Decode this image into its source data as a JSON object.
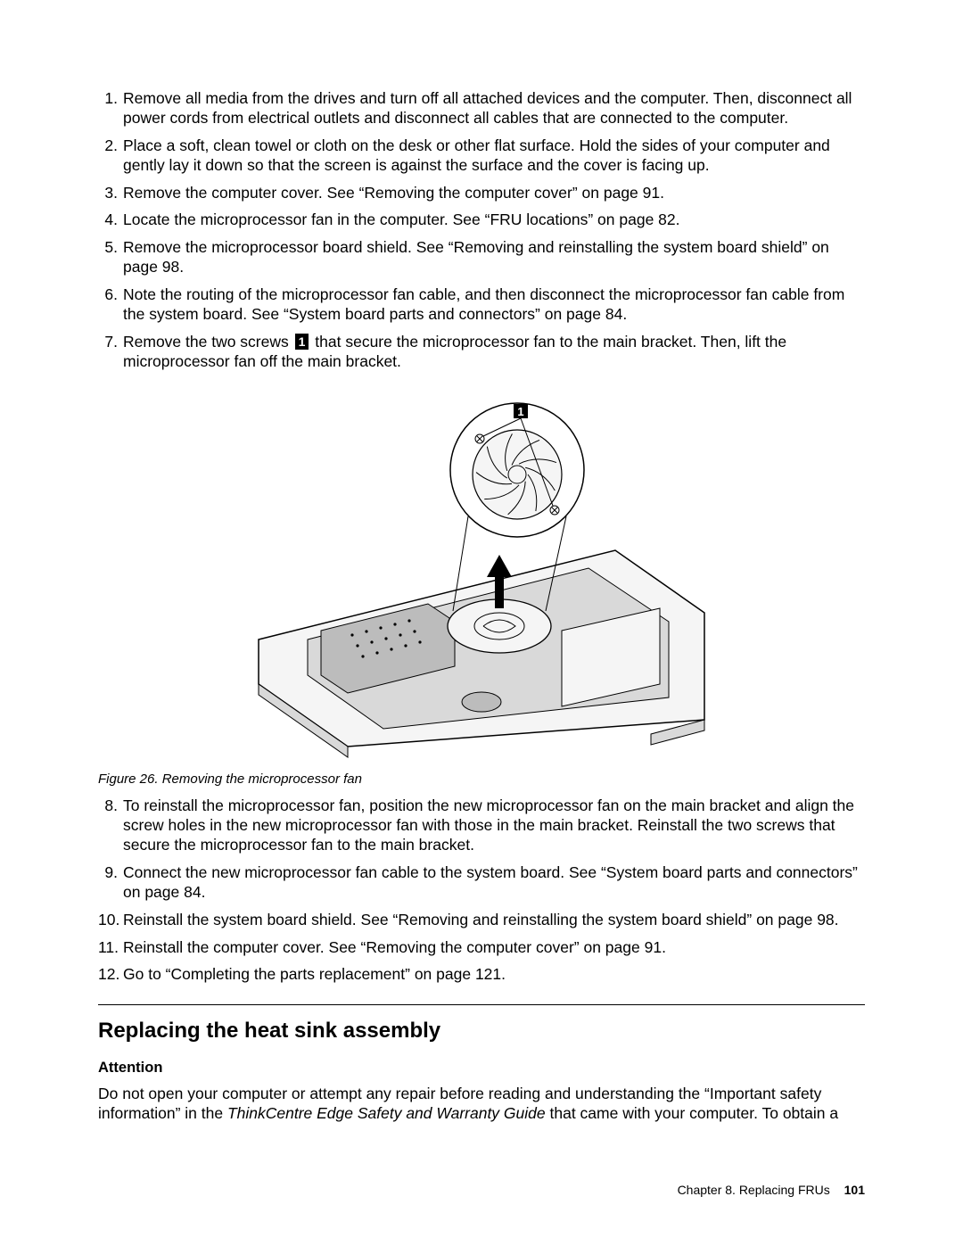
{
  "steps_top": [
    {
      "n": "1.",
      "text": "Remove all media from the drives and turn off all attached devices and the computer. Then, disconnect all power cords from electrical outlets and disconnect all cables that are connected to the computer."
    },
    {
      "n": "2.",
      "text": "Place a soft, clean towel or cloth on the desk or other flat surface. Hold the sides of your computer and gently lay it down so that the screen is against the surface and the cover is facing up."
    },
    {
      "n": "3.",
      "text": "Remove the computer cover. See “Removing the computer cover” on page 91."
    },
    {
      "n": "4.",
      "text": "Locate the microprocessor fan in the computer. See “FRU locations” on page 82."
    },
    {
      "n": "5.",
      "text": "Remove the microprocessor board shield. See “Removing and reinstalling the system board shield” on page 98."
    },
    {
      "n": "6.",
      "text": "Note the routing of the microprocessor fan cable, and then disconnect the microprocessor fan cable from the system board. See “System board parts and connectors” on page 84."
    }
  ],
  "step7": {
    "n": "7.",
    "before": "Remove the two screws ",
    "callout": "1",
    "after": " that secure the microprocessor fan to the main bracket. Then, lift the microprocessor fan off the main bracket."
  },
  "figure": {
    "caption": "Figure 26.  Removing the microprocessor fan",
    "callout_label": "1",
    "colors": {
      "stroke": "#000000",
      "fill_light": "#f5f5f5",
      "fill_mid": "#d9d9d9",
      "fill_dark": "#bcbcbc",
      "arrow": "#000000",
      "bg": "#ffffff"
    }
  },
  "steps_bottom": [
    {
      "n": "8.",
      "text": "To reinstall the microprocessor fan, position the new microprocessor fan on the main bracket and align the screw holes in the new microprocessor fan with those in the main bracket. Reinstall the two screws that secure the microprocessor fan to the main bracket."
    },
    {
      "n": "9.",
      "text": "Connect the new microprocessor fan cable to the system board. See “System board parts and connectors” on page 84."
    },
    {
      "n": "10.",
      "text": "Reinstall the system board shield. See “Removing and reinstalling the system board shield” on page 98."
    },
    {
      "n": "11.",
      "text": "Reinstall the computer cover. See “Removing the computer cover” on page 91."
    },
    {
      "n": "12.",
      "text": "Go to “Completing the parts replacement” on page 121."
    }
  ],
  "section_heading": "Replacing the heat sink assembly",
  "attention_label": "Attention",
  "attention_text_before": "Do not open your computer or attempt any repair before reading and understanding the “Important safety information” in the ",
  "attention_text_italic": "ThinkCentre Edge Safety and Warranty Guide",
  "attention_text_after": " that came with your computer. To obtain a",
  "footer": {
    "chapter": "Chapter 8. Replacing FRUs",
    "page": "101"
  }
}
